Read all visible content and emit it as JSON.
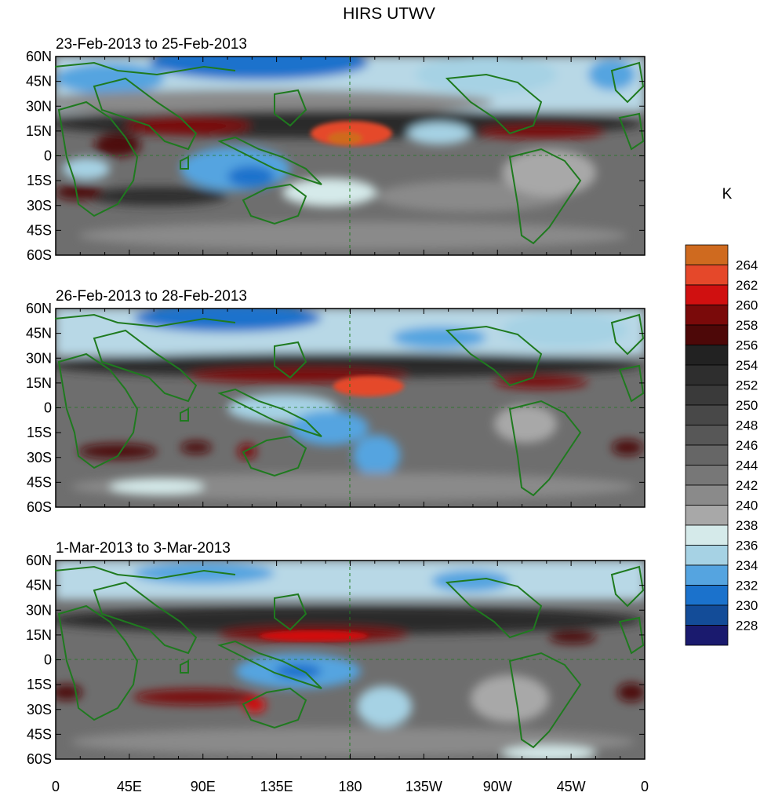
{
  "title": "HIRS UTWV",
  "panels": [
    {
      "label": "23-Feb-2013 to 25-Feb-2013"
    },
    {
      "label": "26-Feb-2013 to 28-Feb-2013"
    },
    {
      "label": "1-Mar-2013 to 3-Mar-2013"
    }
  ],
  "lat_labels": [
    "60N",
    "45N",
    "30N",
    "15N",
    "0",
    "15S",
    "30S",
    "45S",
    "60S"
  ],
  "lon_labels": [
    "0",
    "45E",
    "90E",
    "135E",
    "180",
    "135W",
    "90W",
    "45W",
    "0"
  ],
  "colorbar": {
    "unit": "K",
    "levels": [
      "264",
      "262",
      "260",
      "258",
      "256",
      "254",
      "252",
      "250",
      "248",
      "246",
      "244",
      "242",
      "240",
      "238",
      "236",
      "234",
      "232",
      "230",
      "228"
    ],
    "colors": [
      "#cf6a1f",
      "#e5482a",
      "#d01010",
      "#7a0a0a",
      "#4d0808",
      "#222222",
      "#2e2e2e",
      "#3a3a3a",
      "#484848",
      "#575757",
      "#666666",
      "#777777",
      "#8a8a8a",
      "#a8a8a8",
      "#d5eaea",
      "#a6d2e4",
      "#55a4e0",
      "#1b72cc",
      "#134c98",
      "#1a1a6e"
    ]
  },
  "coast_color": "#1f7a1f"
}
